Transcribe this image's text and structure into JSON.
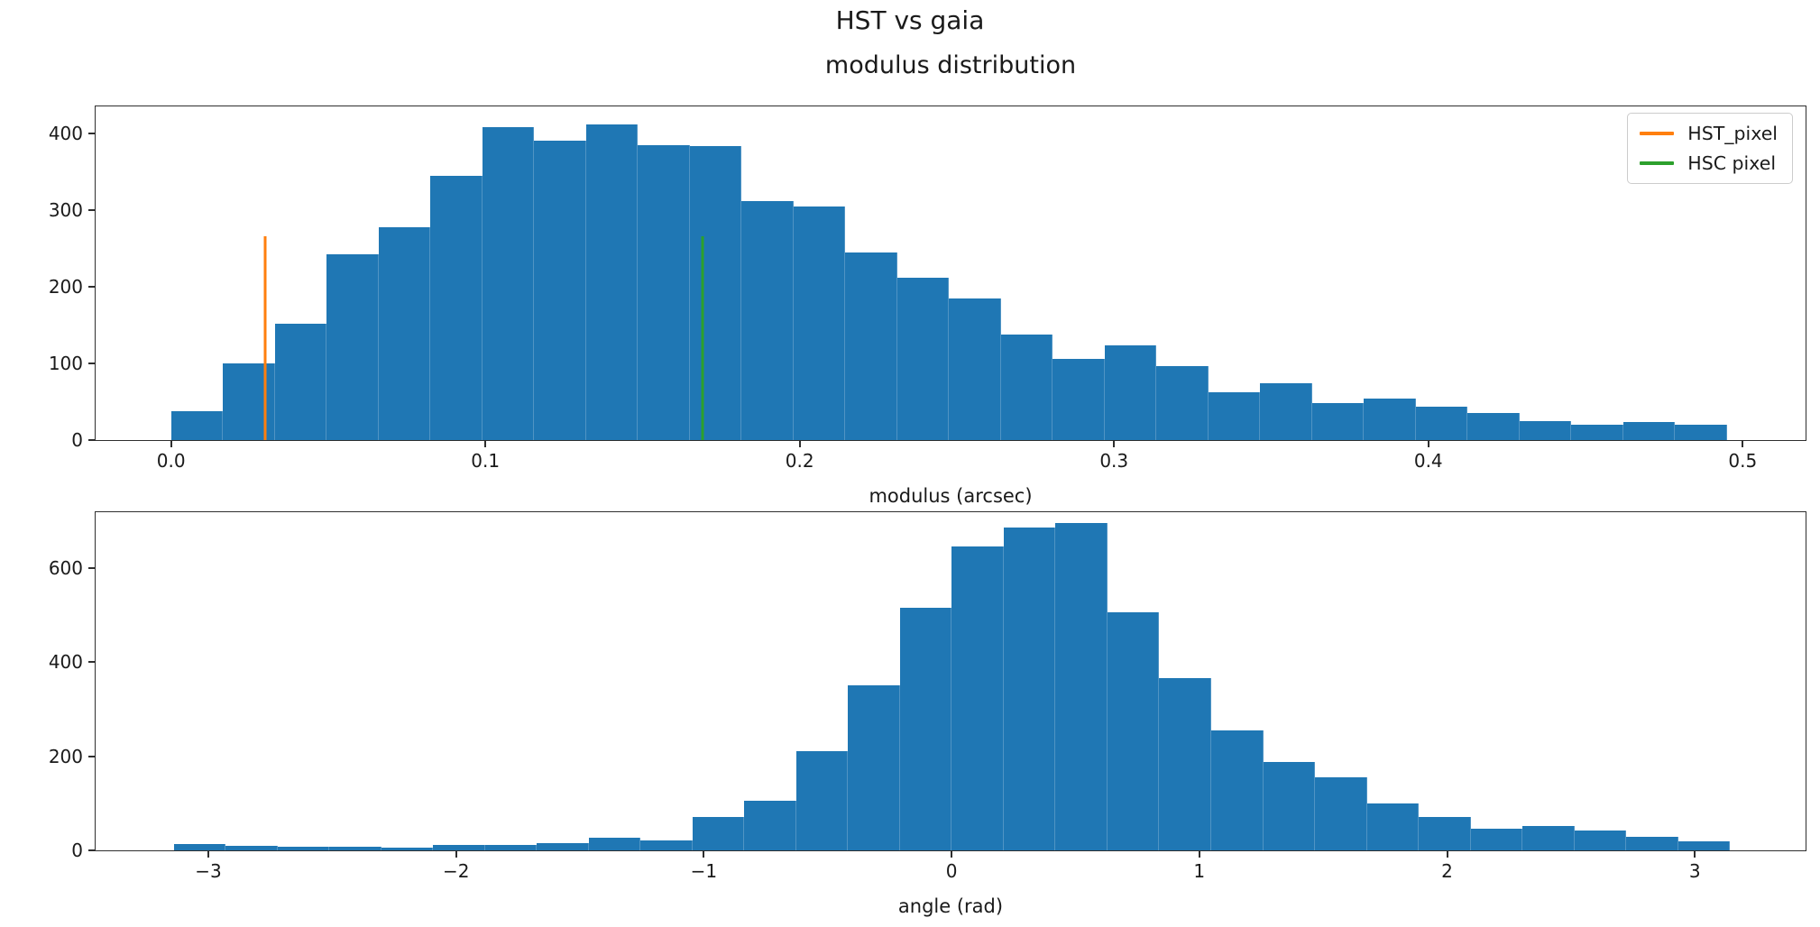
{
  "figure": {
    "suptitle": "HST vs gaia",
    "background": "#ffffff"
  },
  "colors": {
    "bar": "#1f77b4",
    "hst_pixel": "#ff7f0e",
    "hsc_pixel": "#2ca02c",
    "spine": "#2e2e2e",
    "text": "#1a1a1a",
    "legend_border": "#cccccc"
  },
  "chart_data": [
    {
      "type": "bar",
      "name": "modulus-histogram",
      "title": "modulus distribution",
      "xlabel": "modulus (arcsec)",
      "ylabel": "",
      "grid": false,
      "bins": {
        "start": 0.0,
        "width": 0.0165
      },
      "counts": [
        38,
        100,
        152,
        242,
        278,
        345,
        408,
        390,
        412,
        385,
        383,
        312,
        304,
        245,
        212,
        185,
        138,
        106,
        123,
        96,
        62,
        74,
        48,
        54,
        43,
        35,
        25,
        20,
        23,
        20
      ],
      "xlim": [
        -0.024,
        0.52
      ],
      "ylim": [
        0,
        435
      ],
      "xticks": [
        {
          "v": 0.0,
          "label": "0.0"
        },
        {
          "v": 0.1,
          "label": "0.1"
        },
        {
          "v": 0.2,
          "label": "0.2"
        },
        {
          "v": 0.3,
          "label": "0.3"
        },
        {
          "v": 0.4,
          "label": "0.4"
        },
        {
          "v": 0.5,
          "label": "0.5"
        }
      ],
      "yticks": [
        {
          "v": 0,
          "label": "0"
        },
        {
          "v": 100,
          "label": "100"
        },
        {
          "v": 200,
          "label": "200"
        },
        {
          "v": 300,
          "label": "300"
        },
        {
          "v": 400,
          "label": "400"
        }
      ],
      "vlines": [
        {
          "x": 0.03,
          "top": 266,
          "color_key": "hst_pixel",
          "name": "hst-pixel-line"
        },
        {
          "x": 0.169,
          "top": 266,
          "color_key": "hsc_pixel",
          "name": "hsc-pixel-line"
        }
      ],
      "legend": {
        "position": "upper-right",
        "entries": [
          {
            "label": "HST_pixel",
            "color_key": "hst_pixel"
          },
          {
            "label": "HSC pixel",
            "color_key": "hsc_pixel"
          }
        ]
      }
    },
    {
      "type": "bar",
      "name": "angle-histogram",
      "title": "",
      "xlabel": "angle (rad)",
      "ylabel": "",
      "grid": false,
      "bins": {
        "start": -3.14,
        "width": 0.2094
      },
      "counts": [
        13,
        10,
        8,
        8,
        5,
        12,
        12,
        16,
        27,
        22,
        70,
        105,
        210,
        350,
        515,
        645,
        685,
        695,
        505,
        365,
        255,
        187,
        156,
        99,
        70,
        46,
        52,
        42,
        29,
        20
      ],
      "xlim": [
        -3.455,
        3.447
      ],
      "ylim": [
        0,
        718
      ],
      "xticks": [
        {
          "v": -3,
          "label": "−3"
        },
        {
          "v": -2,
          "label": "−2"
        },
        {
          "v": -1,
          "label": "−1"
        },
        {
          "v": 0,
          "label": "0"
        },
        {
          "v": 1,
          "label": "1"
        },
        {
          "v": 2,
          "label": "2"
        },
        {
          "v": 3,
          "label": "3"
        }
      ],
      "yticks": [
        {
          "v": 0,
          "label": "0"
        },
        {
          "v": 200,
          "label": "200"
        },
        {
          "v": 400,
          "label": "400"
        },
        {
          "v": 600,
          "label": "600"
        }
      ],
      "vlines": [],
      "legend": null
    }
  ]
}
